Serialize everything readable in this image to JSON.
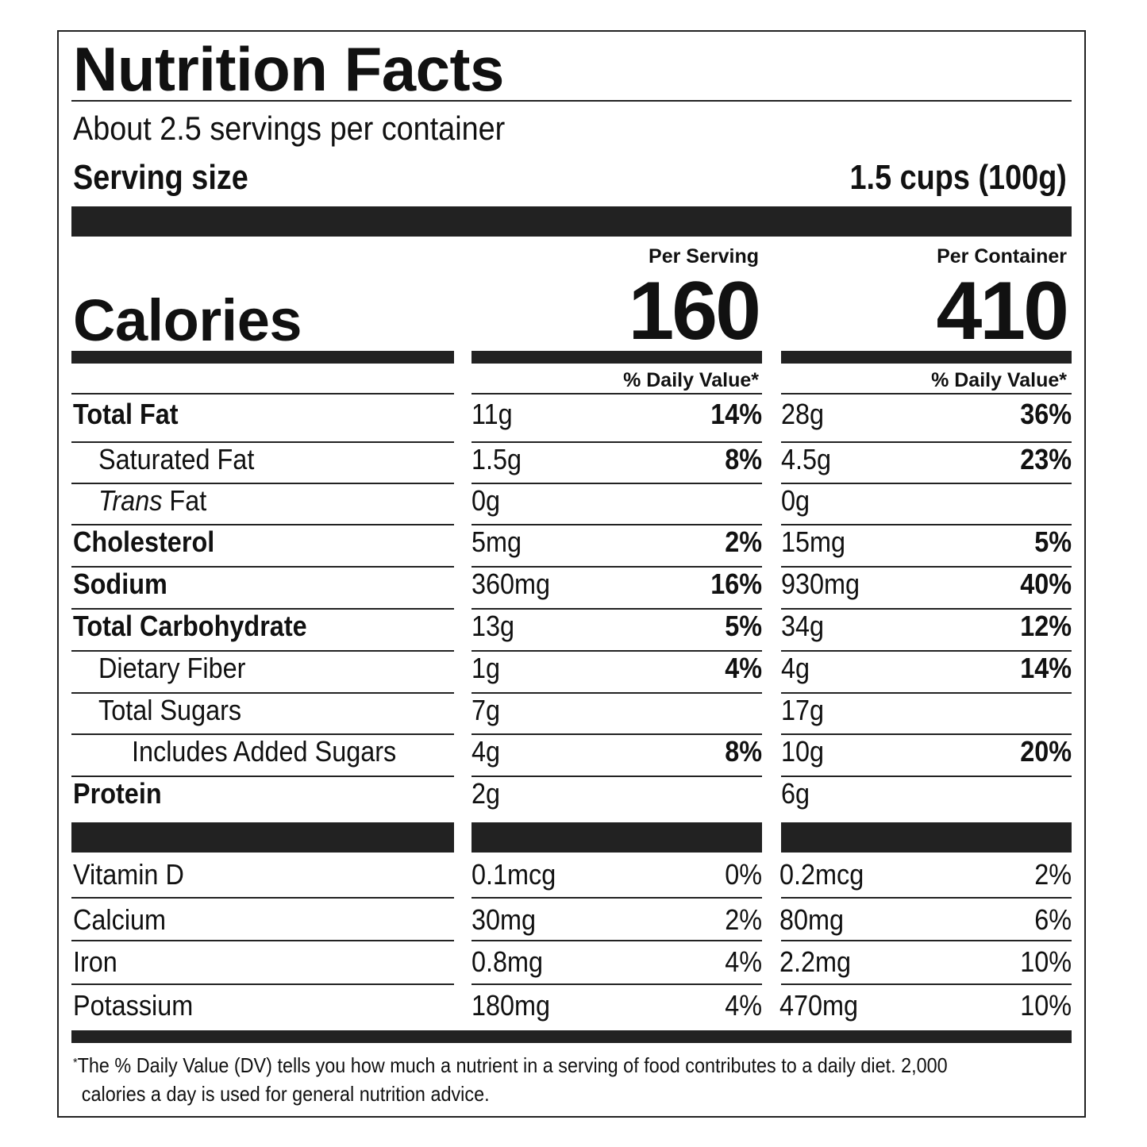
{
  "title": "Nutrition Facts",
  "servings_per_container": "About 2.5 servings per container",
  "serving_size_label": "Serving size",
  "serving_size_value": "1.5 cups (100g)",
  "calories_label": "Calories",
  "columns": [
    {
      "header": "Per Serving",
      "calories": "160",
      "dv_header": "% Daily Value*"
    },
    {
      "header": "Per Container",
      "calories": "410",
      "dv_header": "% Daily Value*"
    }
  ],
  "nutrients": [
    {
      "name": "Total Fat",
      "bold": true,
      "indent": 0,
      "s_amt": "11g",
      "s_dv": "14%",
      "c_amt": "28g",
      "c_dv": "36%"
    },
    {
      "name": "Saturated Fat",
      "bold": false,
      "indent": 1,
      "s_amt": "1.5g",
      "s_dv": "8%",
      "c_amt": "4.5g",
      "c_dv": "23%"
    },
    {
      "name": "Trans Fat",
      "bold": false,
      "indent": 1,
      "italic_prefix": "Trans",
      "name_suffix": " Fat",
      "s_amt": "0g",
      "s_dv": "",
      "c_amt": "0g",
      "c_dv": ""
    },
    {
      "name": "Cholesterol",
      "bold": true,
      "indent": 0,
      "s_amt": "5mg",
      "s_dv": "2%",
      "c_amt": "15mg",
      "c_dv": "5%"
    },
    {
      "name": "Sodium",
      "bold": true,
      "indent": 0,
      "s_amt": "360mg",
      "s_dv": "16%",
      "c_amt": "930mg",
      "c_dv": "40%"
    },
    {
      "name": "Total Carbohydrate",
      "bold": true,
      "indent": 0,
      "s_amt": "13g",
      "s_dv": "5%",
      "c_amt": "34g",
      "c_dv": "12%"
    },
    {
      "name": "Dietary Fiber",
      "bold": false,
      "indent": 1,
      "s_amt": "1g",
      "s_dv": "4%",
      "c_amt": "4g",
      "c_dv": "14%"
    },
    {
      "name": "Total Sugars",
      "bold": false,
      "indent": 1,
      "s_amt": "7g",
      "s_dv": "",
      "c_amt": "17g",
      "c_dv": ""
    },
    {
      "name": "Includes Added Sugars",
      "bold": false,
      "indent": 2,
      "s_amt": "4g",
      "s_dv": "8%",
      "c_amt": "10g",
      "c_dv": "20%"
    },
    {
      "name": "Protein",
      "bold": true,
      "indent": 0,
      "s_amt": "2g",
      "s_dv": "",
      "c_amt": "6g",
      "c_dv": ""
    }
  ],
  "vitamins": [
    {
      "name": "Vitamin D",
      "s_amt": "0.1mcg",
      "s_dv": "0%",
      "c_amt": "0.2mcg",
      "c_dv": "2%"
    },
    {
      "name": "Calcium",
      "s_amt": "30mg",
      "s_dv": "2%",
      "c_amt": "80mg",
      "c_dv": "6%"
    },
    {
      "name": "Iron",
      "s_amt": "0.8mg",
      "s_dv": "4%",
      "c_amt": "2.2mg",
      "c_dv": "10%"
    },
    {
      "name": "Potassium",
      "s_amt": "180mg",
      "s_dv": "4%",
      "c_amt": "470mg",
      "c_dv": "10%"
    }
  ],
  "footnote": {
    "asterisk": "*",
    "line1": "The % Daily Value (DV) tells you how much a nutrient in a serving of food contributes to a daily diet. 2,000",
    "line2": "calories a day is used for general nutrition advice."
  }
}
